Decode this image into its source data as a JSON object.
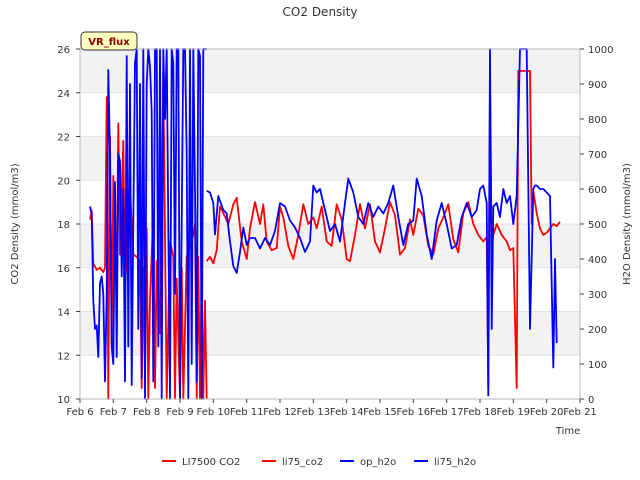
{
  "chart_data": {
    "type": "line",
    "title": "CO2 Density",
    "xlabel": "Time",
    "ylabel": "CO2 Density (mmol/m3)",
    "y2label": "H2O Density (mmol/m3)",
    "annotation": "VR_flux",
    "xlim": [
      6,
      21
    ],
    "ylim": [
      10,
      26
    ],
    "y2lim": [
      0,
      1000
    ],
    "x_ticks": [
      6,
      7,
      8,
      9,
      10,
      11,
      12,
      13,
      14,
      15,
      16,
      17,
      18,
      19,
      20,
      21
    ],
    "x_tick_labels": [
      "Feb 6",
      "Feb 7",
      "Feb 8",
      "Feb 9",
      "Feb 10",
      "Feb 11",
      "Feb 12",
      "Feb 13",
      "Feb 14",
      "Feb 15",
      "Feb 16",
      "Feb 17",
      "Feb 18",
      "Feb 19",
      "Feb 20",
      "Feb 21"
    ],
    "y_ticks": [
      10,
      12,
      14,
      16,
      18,
      20,
      22,
      24,
      26
    ],
    "y2_ticks": [
      0,
      100,
      200,
      300,
      400,
      500,
      600,
      700,
      800,
      900,
      1000
    ],
    "grid": "horizontal bands",
    "legend": "bottom",
    "series": [
      {
        "name": "LI7500 CO2",
        "color": "#ff0000",
        "axis": "left",
        "x": [
          6.3,
          6.35,
          6.4,
          6.5,
          6.6,
          6.7,
          6.75,
          6.8,
          6.85,
          6.9,
          6.95,
          7.0,
          7.05,
          7.1,
          7.15,
          7.2,
          7.3,
          7.35,
          7.4,
          7.5,
          7.6,
          7.7,
          7.8,
          7.85,
          7.9,
          7.95,
          8.0,
          8.05,
          8.1,
          8.2,
          8.25,
          8.3,
          8.4,
          8.5,
          8.6,
          8.7,
          8.8,
          8.85,
          8.9,
          9.0,
          9.05,
          9.1,
          9.2,
          9.3,
          9.4,
          9.45,
          9.5,
          9.55,
          9.6,
          9.65,
          9.7,
          9.75,
          9.8
        ],
        "y": [
          18.2,
          18.6,
          16.2,
          15.9,
          16.0,
          15.8,
          16.0,
          23.8,
          10.0,
          22.0,
          12.5,
          20.2,
          18.0,
          15.3,
          22.6,
          16.6,
          21.8,
          15.0,
          16.5,
          19.6,
          16.6,
          16.5,
          16.3,
          10.5,
          16.0,
          11.0,
          17.8,
          10.0,
          14.5,
          18.5,
          10.5,
          16.3,
          13.0,
          25.0,
          10.0,
          17.2,
          16.5,
          10.0,
          15.5,
          10.0,
          16.0,
          10.0,
          16.5,
          17.0,
          17.5,
          18.0,
          10.0,
          16.5,
          10.0,
          16.0,
          10.0,
          14.5,
          10.0
        ]
      },
      {
        "name": "li75_co2",
        "color": "#ff0000",
        "axis": "left",
        "x": [
          9.8,
          9.9,
          10.0,
          10.1,
          10.2,
          10.3,
          10.45,
          10.6,
          10.7,
          10.85,
          11.0,
          11.1,
          11.25,
          11.4,
          11.5,
          11.6,
          11.75,
          11.9,
          12.0,
          12.1,
          12.25,
          12.4,
          12.55,
          12.7,
          12.85,
          13.0,
          13.1,
          13.25,
          13.4,
          13.55,
          13.7,
          13.85,
          14.0,
          14.1,
          14.25,
          14.4,
          14.55,
          14.7,
          14.85,
          15.0,
          15.15,
          15.3,
          15.45,
          15.6,
          15.75,
          15.9,
          16.0,
          16.15,
          16.3,
          16.45,
          16.6,
          16.75,
          16.9,
          17.05,
          17.2,
          17.35,
          17.5,
          17.65,
          17.8,
          17.95,
          18.1,
          18.2,
          18.25,
          18.3,
          18.35,
          18.4,
          18.5,
          18.65,
          18.8,
          18.9,
          19.0,
          19.1,
          19.15,
          19.2,
          19.3,
          19.4,
          19.5,
          19.55,
          19.6,
          19.7,
          19.8,
          19.9,
          20.0,
          20.1,
          20.2,
          20.3,
          20.4
        ],
        "y": [
          16.3,
          16.5,
          16.2,
          16.8,
          18.8,
          18.5,
          18.0,
          18.9,
          19.2,
          17.2,
          16.4,
          17.8,
          19.0,
          18.0,
          18.9,
          17.2,
          16.8,
          16.9,
          18.8,
          18.3,
          17.0,
          16.4,
          17.5,
          18.9,
          18.0,
          18.3,
          17.8,
          18.8,
          17.2,
          17.0,
          18.9,
          18.2,
          16.4,
          16.3,
          17.5,
          18.9,
          17.8,
          18.9,
          17.2,
          16.7,
          17.8,
          19.0,
          18.4,
          16.6,
          16.9,
          18.2,
          17.5,
          18.7,
          18.4,
          17.0,
          16.6,
          17.8,
          18.3,
          18.9,
          17.3,
          16.7,
          18.5,
          19.0,
          18.0,
          17.5,
          17.2,
          17.4,
          10.5,
          24.5,
          17.0,
          17.5,
          18.0,
          17.5,
          17.2,
          16.8,
          16.9,
          10.5,
          25.0,
          25.0,
          25.0,
          25.0,
          25.0,
          18.0,
          19.5,
          18.5,
          17.8,
          17.5,
          17.6,
          17.8,
          18.0,
          17.9,
          18.1
        ]
      },
      {
        "name": "op_h2o",
        "color": "#0000ff",
        "axis": "right",
        "x": [
          6.3,
          6.35,
          6.4,
          6.45,
          6.5,
          6.55,
          6.6,
          6.65,
          6.7,
          6.75,
          6.8,
          6.85,
          6.9,
          6.95,
          7.0,
          7.05,
          7.1,
          7.15,
          7.2,
          7.25,
          7.3,
          7.35,
          7.4,
          7.45,
          7.5,
          7.55,
          7.6,
          7.65,
          7.7,
          7.75,
          7.8,
          7.85,
          7.9,
          7.95,
          8.0,
          8.05,
          8.1,
          8.15,
          8.2,
          8.25,
          8.3,
          8.35,
          8.4,
          8.45,
          8.5,
          8.55,
          8.6,
          8.65,
          8.7,
          8.75,
          8.8,
          8.85,
          8.9,
          8.95,
          9.0,
          9.05,
          9.1,
          9.15,
          9.2,
          9.25,
          9.3,
          9.35,
          9.4,
          9.45,
          9.5,
          9.55,
          9.6,
          9.65,
          9.7,
          9.75,
          9.8
        ],
        "y": [
          550,
          530,
          280,
          200,
          210,
          120,
          330,
          350,
          300,
          50,
          300,
          940,
          700,
          150,
          100,
          620,
          120,
          700,
          680,
          350,
          600,
          50,
          980,
          150,
          900,
          40,
          500,
          960,
          1000,
          200,
          900,
          60,
          1000,
          0,
          900,
          1000,
          950,
          820,
          50,
          1000,
          1000,
          150,
          1000,
          0,
          1000,
          800,
          1000,
          500,
          0,
          1000,
          960,
          300,
          1000,
          1000,
          0,
          500,
          1000,
          1000,
          700,
          0,
          1000,
          100,
          1000,
          600,
          50,
          1000,
          980,
          0,
          1000,
          1000,
          1000
        ]
      },
      {
        "name": "li75_h2o",
        "color": "#0000ff",
        "axis": "right",
        "x": [
          9.8,
          9.9,
          10.0,
          10.05,
          10.15,
          10.3,
          10.4,
          10.5,
          10.6,
          10.7,
          10.8,
          10.9,
          11.0,
          11.1,
          11.25,
          11.4,
          11.55,
          11.7,
          11.85,
          12.0,
          12.15,
          12.3,
          12.45,
          12.6,
          12.75,
          12.9,
          13.0,
          13.1,
          13.2,
          13.35,
          13.5,
          13.65,
          13.8,
          13.95,
          14.05,
          14.2,
          14.35,
          14.5,
          14.65,
          14.8,
          14.95,
          15.1,
          15.25,
          15.4,
          15.55,
          15.7,
          15.85,
          16.0,
          16.1,
          16.25,
          16.4,
          16.55,
          16.7,
          16.85,
          17.0,
          17.15,
          17.3,
          17.45,
          17.6,
          17.75,
          17.9,
          18.0,
          18.1,
          18.2,
          18.25,
          18.3,
          18.35,
          18.4,
          18.5,
          18.6,
          18.7,
          18.8,
          18.9,
          19.0,
          19.1,
          19.2,
          19.3,
          19.4,
          19.5,
          19.6,
          19.65,
          19.7,
          19.8,
          19.9,
          20.0,
          20.1,
          20.2,
          20.25,
          20.3
        ],
        "y": [
          595,
          590,
          560,
          470,
          580,
          540,
          530,
          450,
          380,
          360,
          420,
          490,
          440,
          460,
          460,
          430,
          460,
          440,
          480,
          560,
          550,
          510,
          490,
          460,
          420,
          450,
          610,
          590,
          600,
          540,
          480,
          500,
          450,
          560,
          630,
          590,
          520,
          500,
          560,
          520,
          550,
          530,
          560,
          610,
          520,
          440,
          500,
          510,
          630,
          580,
          470,
          400,
          510,
          560,
          500,
          430,
          440,
          520,
          560,
          520,
          540,
          600,
          610,
          560,
          10,
          1000,
          200,
          550,
          560,
          520,
          600,
          560,
          580,
          500,
          580,
          1000,
          1000,
          1000,
          200,
          600,
          610,
          610,
          600,
          600,
          590,
          580,
          90,
          400,
          160
        ]
      }
    ]
  }
}
